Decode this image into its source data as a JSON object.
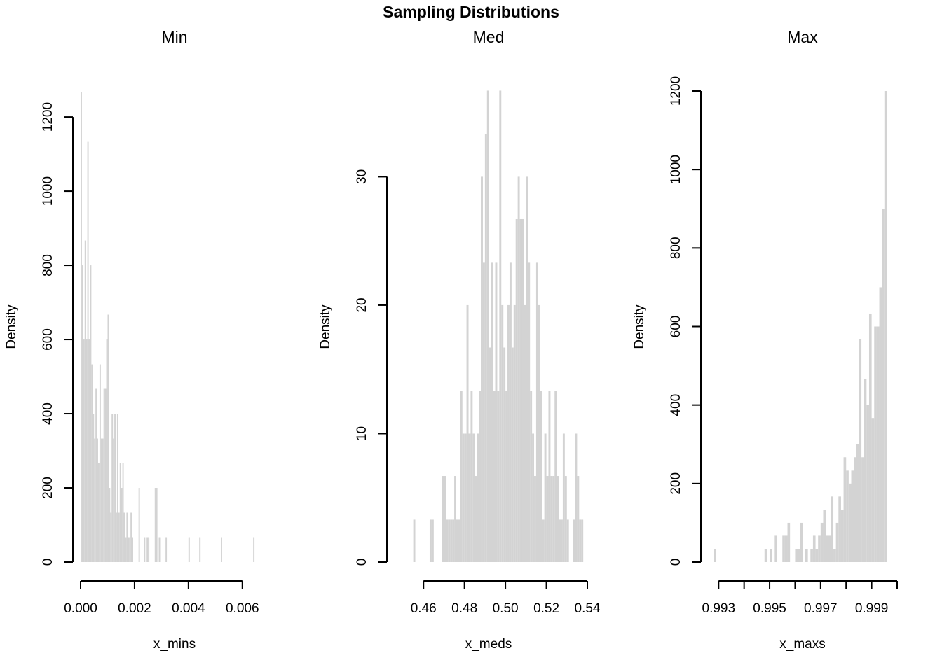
{
  "figure": {
    "title": "Sampling Distributions"
  },
  "chart_data": [
    {
      "type": "bar",
      "title": "Min",
      "xlabel": "x_mins",
      "ylabel": "Density",
      "xlim": [
        0.0,
        0.0065
      ],
      "ylim": [
        0,
        1270
      ],
      "bin_width": 5e-05,
      "bins_start": 0.0,
      "xticks": [
        0.0,
        0.002,
        0.004,
        0.006
      ],
      "xtick_labels": [
        "0.000",
        "0.002",
        "0.004",
        "0.006"
      ],
      "yticks": [
        0,
        200,
        400,
        600,
        800,
        1000,
        1200
      ],
      "ytick_labels": [
        "0",
        "200",
        "400",
        "600",
        "800",
        "1000",
        "1200"
      ],
      "values": [
        1267,
        800,
        600,
        867,
        600,
        1133,
        600,
        800,
        533,
        400,
        333,
        467,
        333,
        267,
        533,
        333,
        333,
        467,
        467,
        600,
        667,
        200,
        133,
        400,
        333,
        400,
        133,
        400,
        133,
        267,
        200,
        267,
        133,
        67,
        133,
        67,
        67,
        133,
        67,
        0,
        0,
        0,
        0,
        200,
        0,
        0,
        0,
        67,
        0,
        67,
        67,
        0,
        0,
        0,
        0,
        200,
        200,
        0,
        67,
        0,
        0,
        0,
        0,
        67,
        0,
        0,
        0,
        0,
        0,
        0,
        0,
        0,
        0,
        0,
        0,
        0,
        0,
        0,
        0,
        0,
        67,
        0,
        0,
        0,
        0,
        0,
        0,
        0,
        67,
        0,
        0,
        0,
        0,
        0,
        0,
        0,
        0,
        0,
        0,
        0,
        0,
        0,
        0,
        0,
        67,
        0,
        0,
        0,
        0,
        0,
        0,
        0,
        0,
        0,
        0,
        0,
        0,
        0,
        0,
        0,
        0,
        0,
        0,
        0,
        0,
        0,
        0,
        0,
        67
      ],
      "bar_color": "#d3d3d3",
      "grid": false
    },
    {
      "type": "bar",
      "title": "Med",
      "xlabel": "x_meds",
      "ylabel": "Density",
      "xlim": [
        0.45,
        0.54
      ],
      "ylim": [
        0,
        36.67
      ],
      "bin_width": 0.001,
      "bins_start": 0.455,
      "xticks": [
        0.46,
        0.48,
        0.5,
        0.52,
        0.54
      ],
      "xtick_labels": [
        "0.46",
        "0.48",
        "0.50",
        "0.52",
        "0.54"
      ],
      "yticks": [
        0,
        10,
        20,
        30
      ],
      "ytick_labels": [
        "0",
        "10",
        "20",
        "30"
      ],
      "values": [
        3.3,
        0,
        0,
        0,
        0,
        0,
        0,
        0,
        3.3,
        3.3,
        0,
        0,
        0,
        0,
        6.7,
        6.7,
        3.3,
        3.3,
        3.3,
        3.3,
        6.7,
        3.3,
        3.3,
        13.3,
        10,
        10,
        20,
        10,
        13.3,
        10,
        6.7,
        10,
        13.3,
        30,
        23.3,
        33.3,
        36.7,
        16.7,
        23.3,
        13.3,
        23.3,
        13.3,
        36.7,
        20,
        16.7,
        13.3,
        20,
        23.3,
        16.7,
        20,
        26.7,
        30,
        26.7,
        26.7,
        20,
        30,
        23.3,
        13.3,
        10,
        6.7,
        23.3,
        20,
        13.3,
        3.3,
        10,
        6.7,
        13.3,
        6.7,
        6.7,
        13.3,
        6.7,
        3.3,
        3.3,
        10,
        6.7,
        3.3,
        0,
        0,
        3.3,
        10,
        6.7,
        3.3,
        3.3
      ],
      "bar_color": "#d3d3d3",
      "grid": false
    },
    {
      "type": "bar",
      "title": "Max",
      "xlabel": "x_maxs",
      "ylabel": "Density",
      "xlim": [
        0.9928,
        1.0
      ],
      "ylim": [
        0,
        1200
      ],
      "bin_width": 0.0001,
      "bins_start": 0.9928,
      "xticks": [
        0.993,
        0.994,
        0.995,
        0.996,
        0.997,
        0.998,
        0.999,
        1.0
      ],
      "xtick_labels": [
        "0.993",
        "",
        "0.995",
        "",
        "0.997",
        "",
        "0.999",
        ""
      ],
      "yticks": [
        0,
        200,
        400,
        600,
        800,
        1000,
        1200
      ],
      "ytick_labels": [
        "0",
        "200",
        "400",
        "600",
        "800",
        "1000",
        "1200"
      ],
      "values": [
        33,
        0,
        0,
        0,
        0,
        0,
        0,
        0,
        0,
        0,
        0,
        0,
        0,
        0,
        0,
        0,
        0,
        0,
        0,
        0,
        33,
        0,
        33,
        0,
        67,
        0,
        0,
        67,
        67,
        100,
        0,
        0,
        33,
        33,
        100,
        0,
        33,
        0,
        33,
        67,
        33,
        67,
        100,
        133,
        67,
        67,
        167,
        33,
        100,
        167,
        133,
        267,
        233,
        200,
        233,
        267,
        300,
        567,
        267,
        467,
        400,
        633,
        367,
        600,
        600,
        700,
        900,
        1200
      ],
      "bar_color": "#d3d3d3",
      "grid": false
    }
  ]
}
